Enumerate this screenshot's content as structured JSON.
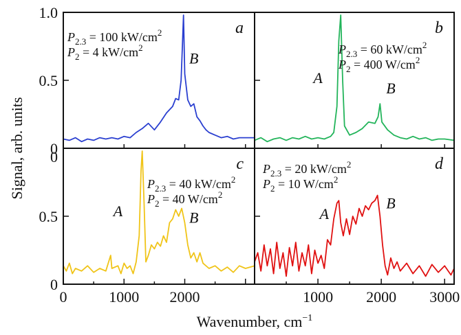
{
  "chart_data": {
    "type": "line",
    "xlabel": "Wavenumber, cm",
    "xlabel_superscript": "−1",
    "ylabel": "Signal, arb. units",
    "xlim": [
      0,
      3150
    ],
    "ylim": [
      0,
      1.0
    ],
    "xticks": [
      "0",
      "1000",
      "2000",
      "3000"
    ],
    "yticks_top": [
      "1.0",
      "0.5",
      "0"
    ],
    "yticks_bottom": [
      "0",
      "0.5",
      "0"
    ],
    "panels": [
      {
        "id": "a",
        "letter": "a",
        "color": "#2a3fd0",
        "params": [
          {
            "sym": "P",
            "sub": "2.3",
            "text": " = 100 kW/cm",
            "sup": "2"
          },
          {
            "sym": "P",
            "sub": "2",
            "text": " = 4 kW/cm",
            "sup": "2"
          }
        ],
        "peak_labels": [
          {
            "text": "B",
            "x": 2150,
            "y": 0.63
          }
        ],
        "points": [
          [
            0,
            0.05
          ],
          [
            100,
            0.04
          ],
          [
            200,
            0.06
          ],
          [
            300,
            0.03
          ],
          [
            400,
            0.05
          ],
          [
            500,
            0.04
          ],
          [
            600,
            0.06
          ],
          [
            700,
            0.05
          ],
          [
            800,
            0.06
          ],
          [
            900,
            0.05
          ],
          [
            1000,
            0.07
          ],
          [
            1100,
            0.06
          ],
          [
            1200,
            0.1
          ],
          [
            1300,
            0.13
          ],
          [
            1400,
            0.17
          ],
          [
            1500,
            0.12
          ],
          [
            1600,
            0.18
          ],
          [
            1700,
            0.25
          ],
          [
            1800,
            0.3
          ],
          [
            1850,
            0.36
          ],
          [
            1900,
            0.35
          ],
          [
            1940,
            0.5
          ],
          [
            1960,
            0.75
          ],
          [
            1980,
            1.0
          ],
          [
            2000,
            0.55
          ],
          [
            2050,
            0.35
          ],
          [
            2100,
            0.3
          ],
          [
            2150,
            0.32
          ],
          [
            2200,
            0.22
          ],
          [
            2250,
            0.19
          ],
          [
            2300,
            0.15
          ],
          [
            2350,
            0.12
          ],
          [
            2400,
            0.1
          ],
          [
            2500,
            0.08
          ],
          [
            2600,
            0.06
          ],
          [
            2700,
            0.07
          ],
          [
            2800,
            0.05
          ],
          [
            2900,
            0.06
          ],
          [
            3000,
            0.06
          ],
          [
            3150,
            0.06
          ]
        ]
      },
      {
        "id": "b",
        "letter": "b",
        "color": "#22b45a",
        "params": [
          {
            "sym": "P",
            "sub": "2.3",
            "text": " = 60 kW/cm",
            "sup": "2"
          },
          {
            "sym": "P",
            "sub": "2",
            "text": " = 400 W/cm",
            "sup": "2"
          }
        ],
        "peak_labels": [
          {
            "text": "A",
            "x": 1000,
            "y": 0.48
          },
          {
            "text": "B",
            "x": 2150,
            "y": 0.4
          }
        ],
        "points": [
          [
            0,
            0.04
          ],
          [
            100,
            0.06
          ],
          [
            200,
            0.03
          ],
          [
            300,
            0.05
          ],
          [
            400,
            0.06
          ],
          [
            500,
            0.04
          ],
          [
            600,
            0.06
          ],
          [
            700,
            0.05
          ],
          [
            800,
            0.07
          ],
          [
            900,
            0.05
          ],
          [
            1000,
            0.06
          ],
          [
            1100,
            0.05
          ],
          [
            1200,
            0.07
          ],
          [
            1250,
            0.1
          ],
          [
            1300,
            0.3
          ],
          [
            1330,
            0.8
          ],
          [
            1360,
            1.0
          ],
          [
            1390,
            0.5
          ],
          [
            1420,
            0.15
          ],
          [
            1500,
            0.08
          ],
          [
            1600,
            0.1
          ],
          [
            1700,
            0.13
          ],
          [
            1800,
            0.18
          ],
          [
            1900,
            0.17
          ],
          [
            1950,
            0.22
          ],
          [
            1980,
            0.32
          ],
          [
            2010,
            0.18
          ],
          [
            2100,
            0.12
          ],
          [
            2200,
            0.08
          ],
          [
            2300,
            0.06
          ],
          [
            2400,
            0.05
          ],
          [
            2500,
            0.07
          ],
          [
            2600,
            0.05
          ],
          [
            2700,
            0.06
          ],
          [
            2800,
            0.04
          ],
          [
            2900,
            0.05
          ],
          [
            3000,
            0.05
          ],
          [
            3150,
            0.04
          ]
        ]
      },
      {
        "id": "c",
        "letter": "c",
        "color": "#f0c418",
        "params": [
          {
            "sym": "P",
            "sub": "2.3",
            "text": " = 40 kW/cm",
            "sup": "2"
          },
          {
            "sym": "P",
            "sub": "2",
            "text": " = 40 W/cm",
            "sup": "2"
          }
        ],
        "peak_labels": [
          {
            "text": "A",
            "x": 900,
            "y": 0.5
          },
          {
            "text": "B",
            "x": 2150,
            "y": 0.45
          }
        ],
        "points": [
          [
            0,
            0.12
          ],
          [
            50,
            0.08
          ],
          [
            100,
            0.14
          ],
          [
            150,
            0.06
          ],
          [
            200,
            0.1
          ],
          [
            300,
            0.08
          ],
          [
            400,
            0.12
          ],
          [
            500,
            0.07
          ],
          [
            600,
            0.1
          ],
          [
            700,
            0.08
          ],
          [
            780,
            0.2
          ],
          [
            800,
            0.1
          ],
          [
            900,
            0.12
          ],
          [
            950,
            0.06
          ],
          [
            1000,
            0.14
          ],
          [
            1050,
            0.1
          ],
          [
            1100,
            0.12
          ],
          [
            1150,
            0.06
          ],
          [
            1200,
            0.15
          ],
          [
            1250,
            0.35
          ],
          [
            1280,
            0.85
          ],
          [
            1300,
            1.0
          ],
          [
            1330,
            0.6
          ],
          [
            1360,
            0.15
          ],
          [
            1400,
            0.2
          ],
          [
            1450,
            0.28
          ],
          [
            1500,
            0.25
          ],
          [
            1550,
            0.3
          ],
          [
            1600,
            0.27
          ],
          [
            1650,
            0.35
          ],
          [
            1700,
            0.3
          ],
          [
            1750,
            0.45
          ],
          [
            1800,
            0.48
          ],
          [
            1850,
            0.55
          ],
          [
            1900,
            0.5
          ],
          [
            1950,
            0.56
          ],
          [
            2000,
            0.45
          ],
          [
            2050,
            0.28
          ],
          [
            2100,
            0.18
          ],
          [
            2150,
            0.22
          ],
          [
            2200,
            0.15
          ],
          [
            2250,
            0.22
          ],
          [
            2300,
            0.14
          ],
          [
            2400,
            0.1
          ],
          [
            2500,
            0.12
          ],
          [
            2600,
            0.08
          ],
          [
            2700,
            0.11
          ],
          [
            2800,
            0.07
          ],
          [
            2900,
            0.12
          ],
          [
            3000,
            0.1
          ],
          [
            3150,
            0.12
          ]
        ]
      },
      {
        "id": "d",
        "letter": "d",
        "color": "#e01010",
        "params": [
          {
            "sym": "P",
            "sub": "2.3",
            "text": " = 20 kW/cm",
            "sup": "2"
          },
          {
            "sym": "P",
            "sub": "2",
            "text": " = 10 W/cm",
            "sup": "2"
          }
        ],
        "peak_labels": [
          {
            "text": "A",
            "x": 1100,
            "y": 0.48
          },
          {
            "text": "B",
            "x": 2150,
            "y": 0.56
          }
        ],
        "points": [
          [
            0,
            0.15
          ],
          [
            50,
            0.22
          ],
          [
            100,
            0.08
          ],
          [
            150,
            0.28
          ],
          [
            200,
            0.12
          ],
          [
            250,
            0.25
          ],
          [
            300,
            0.06
          ],
          [
            350,
            0.3
          ],
          [
            400,
            0.1
          ],
          [
            450,
            0.22
          ],
          [
            500,
            0.04
          ],
          [
            550,
            0.26
          ],
          [
            600,
            0.12
          ],
          [
            650,
            0.3
          ],
          [
            700,
            0.08
          ],
          [
            750,
            0.22
          ],
          [
            800,
            0.12
          ],
          [
            850,
            0.28
          ],
          [
            900,
            0.06
          ],
          [
            950,
            0.24
          ],
          [
            1000,
            0.14
          ],
          [
            1050,
            0.2
          ],
          [
            1100,
            0.1
          ],
          [
            1150,
            0.32
          ],
          [
            1200,
            0.28
          ],
          [
            1250,
            0.48
          ],
          [
            1300,
            0.6
          ],
          [
            1330,
            0.62
          ],
          [
            1360,
            0.45
          ],
          [
            1400,
            0.35
          ],
          [
            1450,
            0.48
          ],
          [
            1500,
            0.36
          ],
          [
            1550,
            0.5
          ],
          [
            1600,
            0.44
          ],
          [
            1650,
            0.56
          ],
          [
            1700,
            0.5
          ],
          [
            1750,
            0.58
          ],
          [
            1800,
            0.55
          ],
          [
            1850,
            0.6
          ],
          [
            1900,
            0.62
          ],
          [
            1940,
            0.66
          ],
          [
            1980,
            0.5
          ],
          [
            2020,
            0.28
          ],
          [
            2060,
            0.12
          ],
          [
            2100,
            0.05
          ],
          [
            2150,
            0.18
          ],
          [
            2200,
            0.1
          ],
          [
            2250,
            0.15
          ],
          [
            2300,
            0.08
          ],
          [
            2400,
            0.14
          ],
          [
            2500,
            0.06
          ],
          [
            2600,
            0.12
          ],
          [
            2700,
            0.04
          ],
          [
            2800,
            0.13
          ],
          [
            2900,
            0.07
          ],
          [
            3000,
            0.12
          ],
          [
            3100,
            0.05
          ],
          [
            3150,
            0.1
          ]
        ]
      }
    ]
  }
}
